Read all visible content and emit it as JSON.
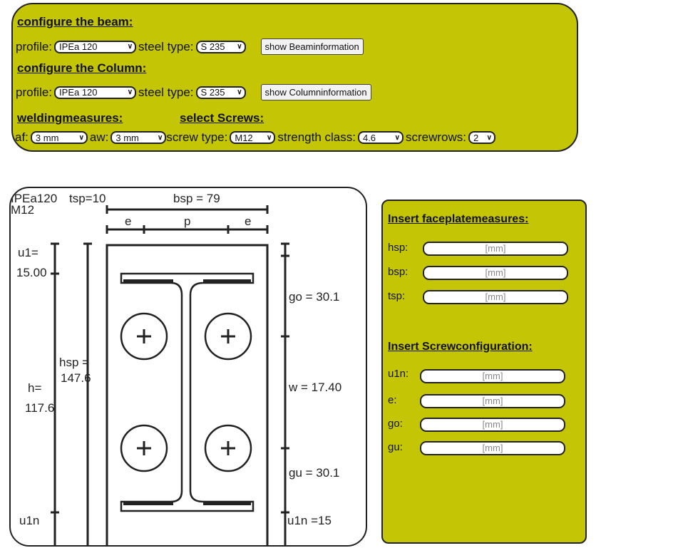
{
  "beam": {
    "heading": "configure the beam:",
    "profile_label": "profile:",
    "profile_value": "IPEa 120",
    "steel_label": "steel type:",
    "steel_value": "S 235",
    "button": "show Beaminformation"
  },
  "column": {
    "heading": "configure the Column:",
    "profile_label": "profile:",
    "profile_value": "IPEa 120",
    "steel_label": "steel type:",
    "steel_value": "S 235",
    "button": "show Columninformation"
  },
  "welding": {
    "heading": "weldingmeasures:",
    "af_label": "af:",
    "af_value": "3 mm",
    "aw_label": "aw:",
    "aw_value": "3 mm"
  },
  "screws": {
    "heading": "select Screws:",
    "type_label": "screw type:",
    "type_value": "M12",
    "class_label": "strength class:",
    "class_value": "4.6",
    "rows_label": "screwrows:",
    "rows_value": "2"
  },
  "drawing": {
    "profile": "IPEa120",
    "screw": "M12",
    "tsp": "tsp=10",
    "bsp": "bsp = 79",
    "e_left": "e",
    "p": "p",
    "e_right": "e",
    "u1_label": "u1=",
    "u1_value": "15.00",
    "hsp_label": "hsp =",
    "hsp_value": "147.6",
    "h_label": "h=",
    "h_value": "117.6",
    "u1n_left": "u1n",
    "go": "go = 30.1",
    "w": "w = 17.40",
    "gu": "gu = 30.1",
    "u1n_right": "u1n =15"
  },
  "faceplate": {
    "heading": "Insert faceplatemeasures:",
    "fields": [
      {
        "label": "hsp:",
        "placeholder": "[mm]"
      },
      {
        "label": "bsp:",
        "placeholder": "[mm]"
      },
      {
        "label": "tsp:",
        "placeholder": "[mm]"
      }
    ]
  },
  "screwconfig": {
    "heading": "Insert Screwconfiguration:",
    "fields": [
      {
        "label": "u1n:",
        "placeholder": "[mm]"
      },
      {
        "label": "e:",
        "placeholder": "[mm]"
      },
      {
        "label": "go:",
        "placeholder": "[mm]"
      },
      {
        "label": "gu:",
        "placeholder": "[mm]"
      }
    ]
  },
  "colors": {
    "panel": "#c3c505",
    "border": "#222222"
  }
}
